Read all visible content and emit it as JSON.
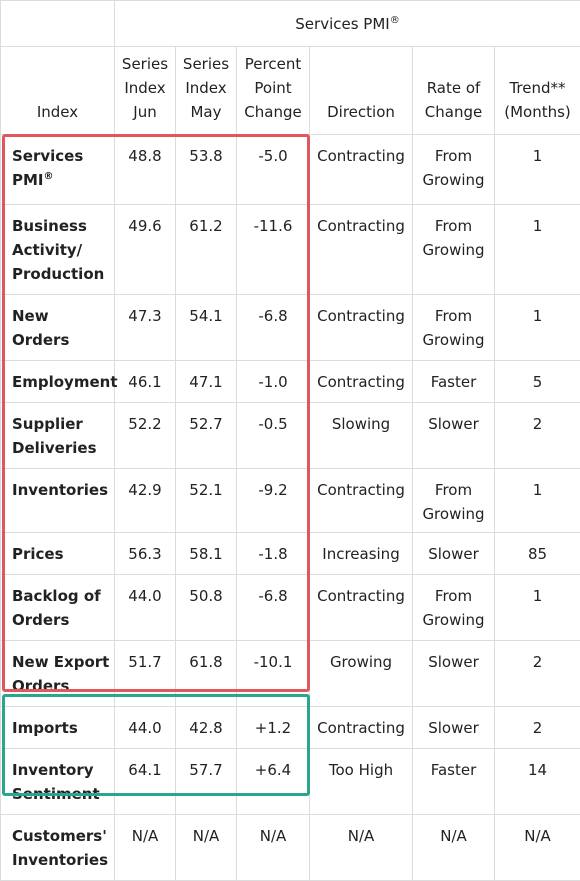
{
  "header": {
    "group_title": "Services PMI",
    "group_title_mark": "®",
    "columns": [
      "Index",
      "Series Index Jun",
      "Series Index May",
      "Percent Point Change",
      "Direction",
      "Rate of Change",
      "Trend** (Months)"
    ]
  },
  "rows": [
    {
      "name": "Services PMI",
      "mark": "®",
      "jun": "48.8",
      "may": "53.8",
      "change": "-5.0",
      "direction": "Contracting",
      "rate": "From Growing",
      "trend": "1"
    },
    {
      "name": "Business Activity/ Production",
      "mark": "",
      "jun": "49.6",
      "may": "61.2",
      "change": "-11.6",
      "direction": "Contracting",
      "rate": "From Growing",
      "trend": "1"
    },
    {
      "name": "New Orders",
      "mark": "",
      "jun": "47.3",
      "may": "54.1",
      "change": "-6.8",
      "direction": "Contracting",
      "rate": "From Growing",
      "trend": "1"
    },
    {
      "name": "Employment",
      "mark": "",
      "jun": "46.1",
      "may": "47.1",
      "change": "-1.0",
      "direction": "Contracting",
      "rate": "Faster",
      "trend": "5"
    },
    {
      "name": "Supplier Deliveries",
      "mark": "",
      "jun": "52.2",
      "may": "52.7",
      "change": "-0.5",
      "direction": "Slowing",
      "rate": "Slower",
      "trend": "2"
    },
    {
      "name": "Inventories",
      "mark": "",
      "jun": "42.9",
      "may": "52.1",
      "change": "-9.2",
      "direction": "Contracting",
      "rate": "From Growing",
      "trend": "1"
    },
    {
      "name": "Prices",
      "mark": "",
      "jun": "56.3",
      "may": "58.1",
      "change": "-1.8",
      "direction": "Increasing",
      "rate": "Slower",
      "trend": "85"
    },
    {
      "name": "Backlog of Orders",
      "mark": "",
      "jun": "44.0",
      "may": "50.8",
      "change": "-6.8",
      "direction": "Contracting",
      "rate": "From Growing",
      "trend": "1"
    },
    {
      "name": "New Export Orders",
      "mark": "",
      "jun": "51.7",
      "may": "61.8",
      "change": "-10.1",
      "direction": "Growing",
      "rate": "Slower",
      "trend": "2"
    },
    {
      "name": "Imports",
      "mark": "",
      "jun": "44.0",
      "may": "42.8",
      "change": "+1.2",
      "direction": "Contracting",
      "rate": "Slower",
      "trend": "2"
    },
    {
      "name": "Inventory Sentiment",
      "mark": "",
      "jun": "64.1",
      "may": "57.7",
      "change": "+6.4",
      "direction": "Too High",
      "rate": "Faster",
      "trend": "14"
    },
    {
      "name": "Customers' Inventories",
      "mark": "",
      "jun": "N/A",
      "may": "N/A",
      "change": "N/A",
      "direction": "N/A",
      "rate": "N/A",
      "trend": "N/A"
    }
  ],
  "highlight_colors": {
    "red_box": "#e0585d",
    "green_box": "#2aa58e"
  }
}
